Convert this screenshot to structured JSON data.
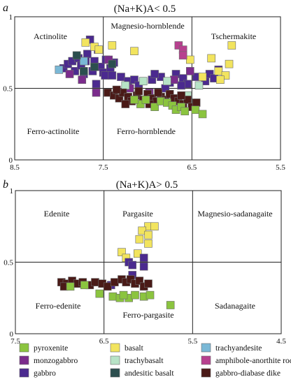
{
  "legend": [
    {
      "key": "pyroxenite",
      "label": "pyroxenite",
      "color": "#8bc43f"
    },
    {
      "key": "basalt",
      "label": "basalt",
      "color": "#f2e45e"
    },
    {
      "key": "trachyandesite",
      "label": "trachyandesite",
      "color": "#7ab8d6"
    },
    {
      "key": "monzogabbro",
      "label": "monzogabbro",
      "color": "#7b2c8c"
    },
    {
      "key": "trachybasalt",
      "label": "trachybasalt",
      "color": "#b7e3c6"
    },
    {
      "key": "amphibole_anorthite_rock",
      "label": "amphibole-anorthite rock",
      "color": "#b7408f"
    },
    {
      "key": "gabbro",
      "label": "gabbro",
      "color": "#4b2a8f"
    },
    {
      "key": "andesitic_basalt",
      "label": "andesitic basalt",
      "color": "#2c4f4f"
    },
    {
      "key": "gabbro_diabase_dike",
      "label": "gabbro-diabase dike",
      "color": "#4a1a17"
    }
  ],
  "chart_data": [
    {
      "type": "scatter",
      "panel_label": "a",
      "title": "(Na+K)A< 0.5",
      "xlim": [
        8.5,
        5.5
      ],
      "ylim": [
        0,
        1
      ],
      "x_ticks": [
        "8.5",
        "7.5",
        "6.5",
        "5.5"
      ],
      "y_ticks": [
        "0",
        "0.5",
        "1"
      ],
      "x_dividers": [
        7.5,
        6.5
      ],
      "y_divider": 0.5,
      "fields": [
        {
          "text": "Actinolite"
        },
        {
          "text": "Magnesio-hornblende"
        },
        {
          "text": "Tschermakite"
        },
        {
          "text": "Ferro-actinolite"
        },
        {
          "text": "Ferro-hornblende"
        }
      ],
      "series": [
        {
          "name": "gabbro",
          "color": "#4b2a8f",
          "points": [
            [
              7.95,
              0.64
            ],
            [
              7.9,
              0.67
            ],
            [
              7.85,
              0.69
            ],
            [
              7.82,
              0.62
            ],
            [
              7.78,
              0.71
            ],
            [
              7.75,
              0.66
            ],
            [
              7.72,
              0.6
            ],
            [
              7.68,
              0.74
            ],
            [
              7.65,
              0.84
            ],
            [
              7.62,
              0.62
            ],
            [
              7.6,
              0.69
            ],
            [
              7.56,
              0.77
            ],
            [
              7.53,
              0.65
            ],
            [
              7.5,
              0.61
            ],
            [
              7.47,
              0.7
            ],
            [
              7.42,
              0.64
            ],
            [
              7.38,
              0.68
            ],
            [
              7.3,
              0.58
            ],
            [
              7.22,
              0.55
            ],
            [
              7.15,
              0.56
            ],
            [
              7.05,
              0.55
            ],
            [
              6.95,
              0.56
            ],
            [
              6.85,
              0.58
            ],
            [
              6.75,
              0.54
            ],
            [
              6.68,
              0.6
            ],
            [
              6.6,
              0.57
            ],
            [
              6.55,
              0.53
            ],
            [
              6.45,
              0.58
            ],
            [
              6.35,
              0.55
            ],
            [
              6.3,
              0.6
            ],
            [
              6.25,
              0.57
            ],
            [
              6.2,
              0.63
            ],
            [
              7.58,
              0.53
            ],
            [
              7.48,
              0.59
            ],
            [
              7.1,
              0.52
            ],
            [
              6.92,
              0.6
            ],
            [
              6.8,
              0.5
            ],
            [
              6.62,
              0.52
            ],
            [
              7.7,
              0.69
            ],
            [
              7.4,
              0.59
            ]
          ]
        },
        {
          "name": "monzogabbro",
          "color": "#7b2c8c",
          "points": [
            [
              7.88,
              0.6
            ],
            [
              7.74,
              0.56
            ],
            [
              7.58,
              0.47
            ],
            [
              7.44,
              0.7
            ],
            [
              7.2,
              0.5
            ],
            [
              6.98,
              0.47
            ],
            [
              6.7,
              0.56
            ],
            [
              6.52,
              0.62
            ]
          ]
        },
        {
          "name": "basalt",
          "color": "#f2e45e",
          "points": [
            [
              7.7,
              0.82
            ],
            [
              7.6,
              0.79
            ],
            [
              7.55,
              0.77
            ],
            [
              7.4,
              0.8
            ],
            [
              7.15,
              0.76
            ],
            [
              6.52,
              0.7
            ],
            [
              6.28,
              0.71
            ],
            [
              6.2,
              0.62
            ],
            [
              6.12,
              0.59
            ],
            [
              6.08,
              0.67
            ],
            [
              6.05,
              0.8
            ],
            [
              6.38,
              0.58
            ],
            [
              6.18,
              0.56
            ]
          ]
        },
        {
          "name": "amphibole-anorthite rock",
          "color": "#b7408f",
          "points": [
            [
              6.65,
              0.8
            ],
            [
              6.6,
              0.77
            ],
            [
              6.6,
              0.73
            ]
          ]
        },
        {
          "name": "trachyandesite",
          "color": "#7ab8d6",
          "points": [
            [
              8.0,
              0.63
            ],
            [
              7.72,
              0.69
            ]
          ]
        },
        {
          "name": "trachybasalt",
          "color": "#b7e3c6",
          "points": [
            [
              7.25,
              0.52
            ],
            [
              7.05,
              0.55
            ],
            [
              6.78,
              0.55
            ],
            [
              6.55,
              0.45
            ],
            [
              6.42,
              0.52
            ]
          ]
        },
        {
          "name": "andesitic basalt",
          "color": "#2c4f4f",
          "points": [
            [
              7.8,
              0.73
            ],
            [
              7.72,
              0.62
            ],
            [
              7.6,
              0.65
            ],
            [
              7.4,
              0.67
            ]
          ]
        },
        {
          "name": "gabbro-diabase dike",
          "color": "#4a1a17",
          "points": [
            [
              7.45,
              0.47
            ],
            [
              7.38,
              0.45
            ],
            [
              7.32,
              0.43
            ],
            [
              7.28,
              0.47
            ],
            [
              7.22,
              0.44
            ],
            [
              7.18,
              0.41
            ],
            [
              7.12,
              0.45
            ],
            [
              7.05,
              0.42
            ],
            [
              7.0,
              0.46
            ],
            [
              6.95,
              0.43
            ],
            [
              6.9,
              0.41
            ],
            [
              6.85,
              0.44
            ],
            [
              6.8,
              0.42
            ],
            [
              6.75,
              0.46
            ],
            [
              6.7,
              0.43
            ],
            [
              6.65,
              0.41
            ],
            [
              6.6,
              0.39
            ],
            [
              6.55,
              0.42
            ],
            [
              6.5,
              0.37
            ],
            [
              7.25,
              0.39
            ],
            [
              7.1,
              0.48
            ],
            [
              6.88,
              0.47
            ],
            [
              7.35,
              0.49
            ],
            [
              6.98,
              0.39
            ],
            [
              6.62,
              0.45
            ],
            [
              6.45,
              0.4
            ]
          ]
        },
        {
          "name": "pyroxenite",
          "color": "#8bc43f",
          "points": [
            [
              7.08,
              0.39
            ],
            [
              7.02,
              0.42
            ],
            [
              6.92,
              0.37
            ],
            [
              6.85,
              0.41
            ],
            [
              6.78,
              0.4
            ],
            [
              6.72,
              0.38
            ],
            [
              6.68,
              0.35
            ],
            [
              6.62,
              0.37
            ],
            [
              6.58,
              0.34
            ],
            [
              6.46,
              0.35
            ],
            [
              6.38,
              0.32
            ],
            [
              7.15,
              0.42
            ]
          ]
        }
      ]
    },
    {
      "type": "scatter",
      "panel_label": "b",
      "title": "(Na+K)A> 0.5",
      "xlim": [
        7.5,
        4.5
      ],
      "ylim": [
        0,
        1
      ],
      "x_ticks": [
        "7.5",
        "6.5",
        "5.5",
        "4.5"
      ],
      "y_ticks": [
        "0",
        "0.5",
        "1"
      ],
      "x_dividers": [
        6.5,
        5.5
      ],
      "y_divider": 0.5,
      "fields": [
        {
          "text": "Edenite"
        },
        {
          "text": "Pargasite"
        },
        {
          "text": "Magnesio-sadanagaite"
        },
        {
          "text": "Ferro-edenite"
        },
        {
          "text": "Ferro-pargasite"
        },
        {
          "text": "Sadanagaite"
        }
      ],
      "series": [
        {
          "name": "basalt",
          "color": "#f2e45e",
          "points": [
            [
              6.0,
              0.75
            ],
            [
              5.93,
              0.75
            ],
            [
              6.07,
              0.72
            ],
            [
              6.0,
              0.69
            ],
            [
              6.1,
              0.66
            ],
            [
              6.0,
              0.63
            ],
            [
              6.3,
              0.57
            ],
            [
              6.25,
              0.53
            ],
            [
              6.12,
              0.56
            ]
          ]
        },
        {
          "name": "gabbro",
          "color": "#4b2a8f",
          "points": [
            [
              6.22,
              0.5
            ],
            [
              6.18,
              0.48
            ],
            [
              6.05,
              0.47
            ],
            [
              6.05,
              0.53
            ],
            [
              6.18,
              0.41
            ],
            [
              6.42,
              0.34
            ]
          ]
        },
        {
          "name": "gabbro-diabase dike",
          "color": "#4a1a17",
          "points": [
            [
              6.98,
              0.36
            ],
            [
              6.92,
              0.35
            ],
            [
              6.86,
              0.37
            ],
            [
              6.8,
              0.35
            ],
            [
              6.74,
              0.36
            ],
            [
              6.66,
              0.34
            ],
            [
              6.6,
              0.36
            ],
            [
              6.52,
              0.35
            ],
            [
              6.46,
              0.33
            ],
            [
              6.38,
              0.36
            ],
            [
              6.3,
              0.38
            ],
            [
              6.25,
              0.36
            ],
            [
              6.2,
              0.38
            ],
            [
              6.15,
              0.35
            ],
            [
              6.1,
              0.37
            ],
            [
              6.05,
              0.33
            ],
            [
              6.0,
              0.35
            ],
            [
              6.95,
              0.33
            ]
          ]
        },
        {
          "name": "pyroxenite",
          "color": "#8bc43f",
          "points": [
            [
              6.88,
              0.33
            ],
            [
              6.72,
              0.34
            ],
            [
              6.55,
              0.28
            ],
            [
              6.4,
              0.26
            ],
            [
              6.32,
              0.25
            ],
            [
              6.22,
              0.25
            ],
            [
              6.15,
              0.27
            ],
            [
              6.05,
              0.26
            ],
            [
              5.98,
              0.27
            ],
            [
              6.28,
              0.27
            ],
            [
              5.75,
              0.2
            ]
          ]
        }
      ]
    }
  ]
}
